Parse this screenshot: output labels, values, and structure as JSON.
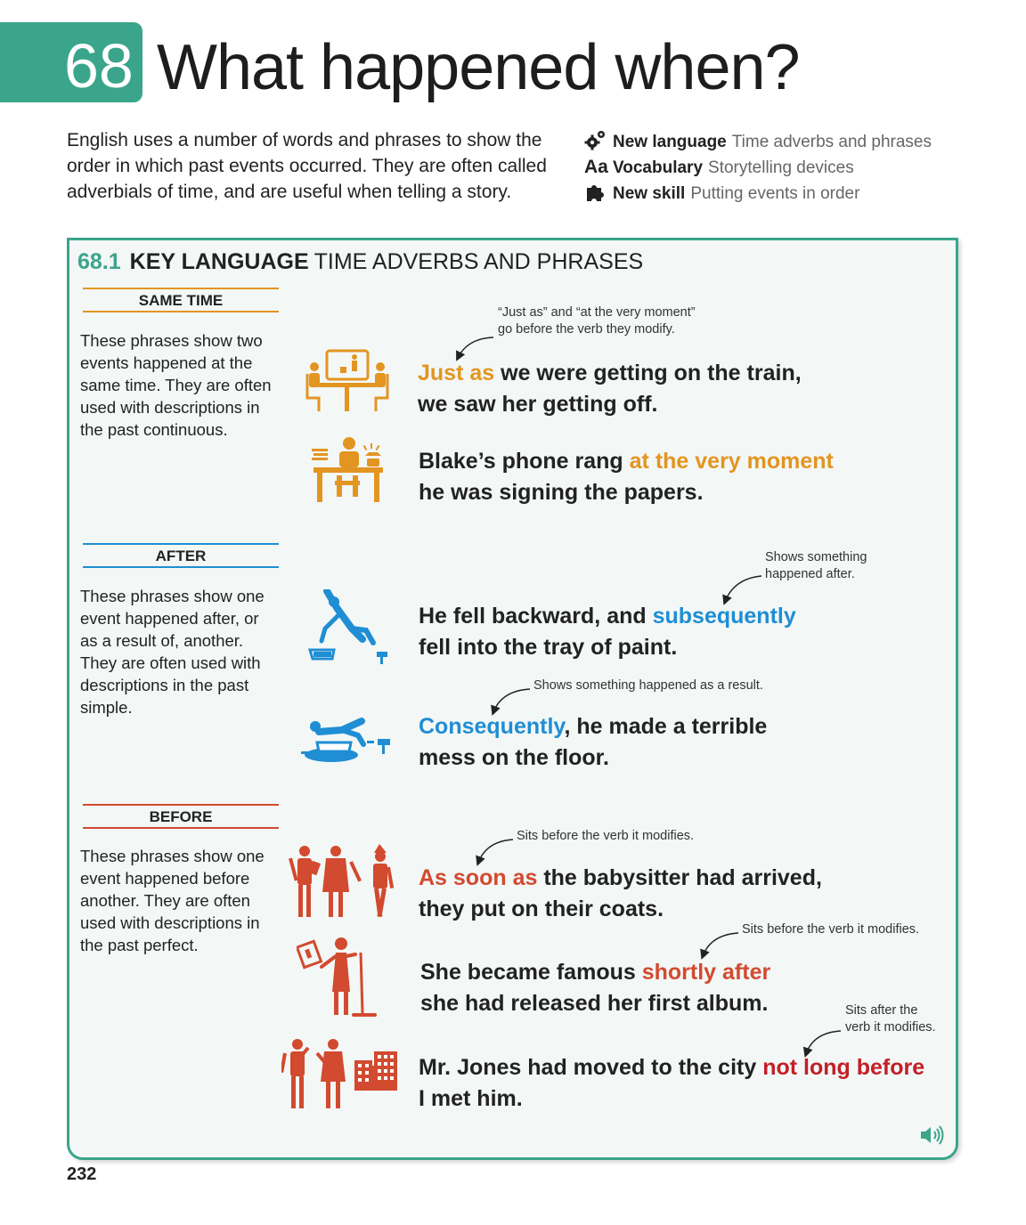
{
  "header": {
    "unit_number": "68",
    "title": "What happened when?",
    "intro": "English uses a number of words and phrases to show the order in which past events occurred. They are often called adverbials of time, and are useful when telling a story."
  },
  "meta": [
    {
      "icon": "gears-icon",
      "label": "New language",
      "value": "Time adverbs and phrases"
    },
    {
      "icon": "aa-icon",
      "icon_text": "Aa",
      "label": "Vocabulary",
      "value": "Storytelling devices"
    },
    {
      "icon": "puzzle-icon",
      "label": "New skill",
      "value": "Putting events in order"
    }
  ],
  "panel": {
    "number": "68.1",
    "title_bold": "KEY LANGUAGE",
    "title_rest": "TIME ADVERBS AND PHRASES"
  },
  "sections": {
    "same_time": {
      "heading": "SAME TIME",
      "color": "#e39521",
      "description": "These phrases show two events happened at the same time. They are often used with descriptions in the past continuous."
    },
    "after": {
      "heading": "AFTER",
      "color": "#1f8ed4",
      "description": "These phrases show one event happened after, or as a result of, another. They are often used with descriptions in the past simple."
    },
    "before": {
      "heading": "BEFORE",
      "color": "#d24a2f",
      "description": "These phrases show one event happened before another. They are often used with descriptions in the past perfect."
    }
  },
  "examples": {
    "train": {
      "note_line1": "“Just as” and “at the very moment”",
      "note_line2": "go before the verb they modify.",
      "highlight": "Just as",
      "line1_rest": " we were getting on the train,",
      "line2": "we saw her getting off."
    },
    "phone": {
      "line1_pre": "Blake’s phone rang ",
      "highlight": "at the very moment",
      "line2": "he was signing the papers."
    },
    "fell": {
      "note_line1": "Shows something",
      "note_line2": "happened after.",
      "line1_pre": "He fell backward, and ",
      "highlight": "subsequently",
      "line2": "fell into the tray of paint."
    },
    "mess": {
      "note": "Shows something happened as a result.",
      "highlight": "Consequently",
      "line1_rest": ", he made a terrible",
      "line2": "mess on the floor."
    },
    "babysitter": {
      "note": "Sits before the verb it modifies.",
      "highlight": "As soon as",
      "line1_rest": " the babysitter had arrived,",
      "line2": "they put on their coats."
    },
    "famous": {
      "note": "Sits before the verb it modifies.",
      "line1_pre": "She became famous ",
      "highlight": "shortly after",
      "line2": "she had released her first album."
    },
    "jones": {
      "note_line1": "Sits after the",
      "note_line2": "verb it modifies.",
      "line1_pre": "Mr. Jones had moved to the city ",
      "highlight": "not long before",
      "line2": "I met him."
    }
  },
  "page_number": "232"
}
